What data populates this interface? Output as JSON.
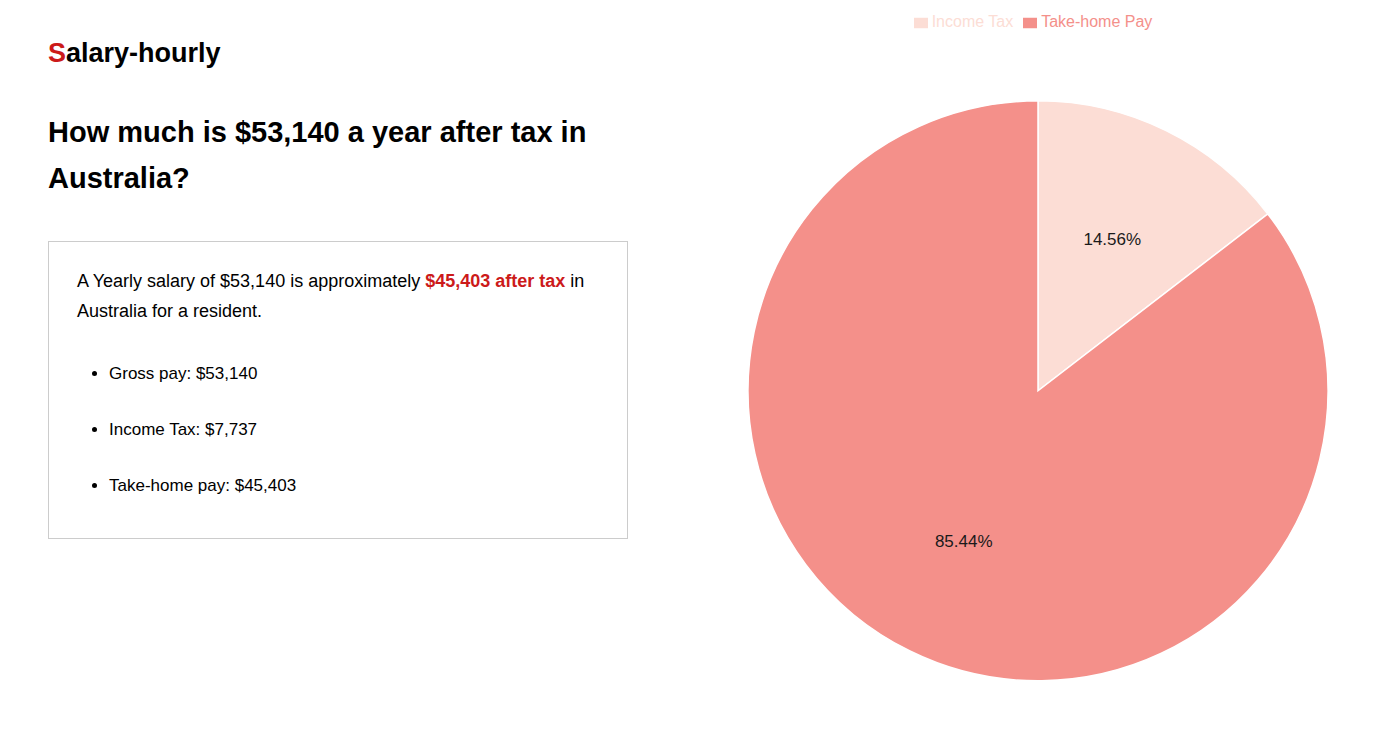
{
  "chart_data": {
    "type": "pie",
    "title": [
      "How much is $53,140 a year after tax in",
      "Australia?"
    ],
    "categories": [
      "Income Tax",
      "Take-home Pay"
    ],
    "values": [
      14.56,
      85.44
    ],
    "value_labels": [
      "14.56%",
      "85.44%"
    ],
    "colors": [
      "#fcddd5",
      "#f4908a"
    ],
    "data_labels": true,
    "legend": "top",
    "annotations": {
      "logo": [
        {
          "text": "S",
          "color": "#cc1a1a"
        },
        {
          "text": "alary-hourly"
        }
      ],
      "box": [
        [
          {
            "text": "A Yearly salary of $53,140 is approximately "
          },
          {
            "text": "$45,403 after tax",
            "color": "#cc1a1a"
          },
          {
            "text": " in"
          }
        ],
        [
          {
            "text": "Australia for a resident."
          }
        ]
      ],
      "bullets": [
        "Gross pay: $53,140",
        "Income Tax: $7,737",
        "Take-home pay: $45,403"
      ]
    }
  }
}
